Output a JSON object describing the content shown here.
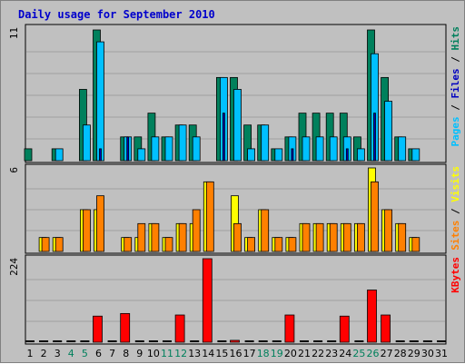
{
  "chart_data": {
    "type": "bar",
    "title": "Daily usage for September 2010",
    "colors": {
      "background": "#c0c0c0",
      "plot_background": "#c0c0c0",
      "grid": "#a0a0a0",
      "title": "#0000cc",
      "hits": "#00805c",
      "files": "#00c0ff",
      "pages": "#0000c0",
      "visits": "#ffff00",
      "sites": "#ff8000",
      "kbytes": "#ff0000",
      "weekend_label": "#00805c",
      "weekday_label": "#000000"
    },
    "days": [
      "1",
      "2",
      "3",
      "4",
      "5",
      "6",
      "7",
      "8",
      "9",
      "10",
      "11",
      "12",
      "13",
      "14",
      "15",
      "16",
      "17",
      "18",
      "19",
      "20",
      "21",
      "22",
      "23",
      "24",
      "25",
      "26",
      "27",
      "28",
      "29",
      "30",
      "31"
    ],
    "weekend_days": [
      4,
      5,
      11,
      12,
      18,
      19,
      25,
      26
    ],
    "panels": [
      {
        "id": "hits-files-pages",
        "scale_label": "11",
        "ymax": 11,
        "legend": [
          {
            "text": "Pages",
            "color": "#00c0ff"
          },
          {
            "text": " / ",
            "color": "#000000"
          },
          {
            "text": "Files",
            "color": "#0000c0"
          },
          {
            "text": " / ",
            "color": "#000000"
          },
          {
            "text": "Hits",
            "color": "#00805c"
          }
        ],
        "series": [
          {
            "name": "Hits",
            "color": "#00805c",
            "values": [
              1,
              0,
              1,
              0,
              6,
              11,
              0,
              2,
              2,
              4,
              2,
              3,
              3,
              0,
              7,
              7,
              3,
              3,
              1,
              2,
              4,
              4,
              4,
              4,
              2,
              11,
              7,
              2,
              1,
              0,
              0
            ]
          },
          {
            "name": "Files",
            "color": "#00c0ff",
            "values": [
              0,
              0,
              1,
              0,
              3,
              10,
              0,
              2,
              1,
              2,
              2,
              3,
              2,
              0,
              7,
              6,
              1,
              3,
              1,
              2,
              2,
              2,
              2,
              2,
              1,
              9,
              5,
              2,
              1,
              0,
              0
            ]
          },
          {
            "name": "Pages",
            "color": "#0000c0",
            "values": [
              0,
              0,
              0,
              0,
              0,
              1,
              0,
              2,
              0,
              0,
              0,
              0,
              0,
              0,
              4,
              0,
              0,
              0,
              0,
              1,
              0,
              0,
              0,
              1,
              0,
              4,
              0,
              0,
              0,
              0,
              0
            ]
          }
        ]
      },
      {
        "id": "visits-sites",
        "scale_label": "6",
        "ymax": 6,
        "legend": [
          {
            "text": "Sites",
            "color": "#ff8000"
          },
          {
            "text": " / ",
            "color": "#000000"
          },
          {
            "text": "Visits",
            "color": "#ffff00"
          }
        ],
        "series": [
          {
            "name": "Visits",
            "color": "#ffff00",
            "values": [
              0,
              1,
              1,
              0,
              3,
              3,
              0,
              1,
              1,
              2,
              1,
              2,
              2,
              5,
              0,
              4,
              1,
              3,
              1,
              1,
              2,
              2,
              2,
              2,
              2,
              6,
              3,
              2,
              1,
              0,
              0
            ]
          },
          {
            "name": "Sites",
            "color": "#ff8000",
            "values": [
              0,
              1,
              1,
              0,
              3,
              4,
              0,
              1,
              2,
              2,
              1,
              2,
              3,
              5,
              0,
              2,
              1,
              3,
              1,
              1,
              2,
              2,
              2,
              2,
              2,
              5,
              3,
              2,
              1,
              0,
              0
            ]
          }
        ]
      },
      {
        "id": "kbytes",
        "scale_label": "224",
        "ymax": 224,
        "legend": [
          {
            "text": "KBytes",
            "color": "#ff0000"
          }
        ],
        "series": [
          {
            "name": "KBytes",
            "color": "#ff0000",
            "values": [
              0,
              0,
              0,
              0,
              0,
              70,
              0,
              77,
              0,
              0,
              0,
              73,
              0,
              224,
              0,
              5,
              0,
              0,
              0,
              73,
              0,
              0,
              0,
              70,
              0,
              140,
              73,
              0,
              0,
              0,
              0
            ]
          }
        ]
      }
    ]
  }
}
